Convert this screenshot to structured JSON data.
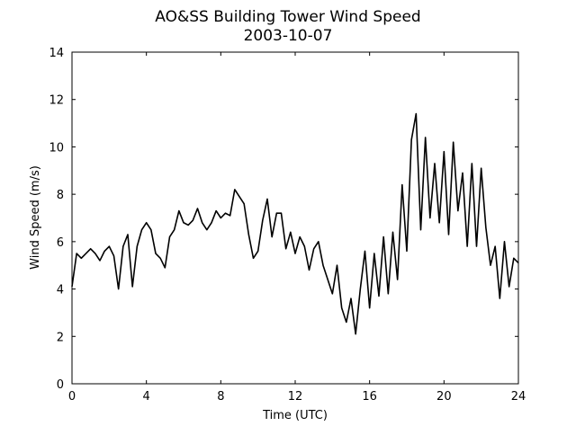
{
  "chart_data": {
    "type": "line",
    "title": "AO&SS Building Tower Wind Speed",
    "subtitle": "2003-10-07",
    "xlabel": "Time (UTC)",
    "ylabel": "Wind Speed (m/s)",
    "x": [
      0,
      0.25,
      0.5,
      0.75,
      1,
      1.25,
      1.5,
      1.75,
      2,
      2.25,
      2.5,
      2.75,
      3,
      3.25,
      3.5,
      3.75,
      4,
      4.25,
      4.5,
      4.75,
      5,
      5.25,
      5.5,
      5.75,
      6,
      6.25,
      6.5,
      6.75,
      7,
      7.25,
      7.5,
      7.75,
      8,
      8.25,
      8.5,
      8.75,
      9,
      9.25,
      9.5,
      9.75,
      10,
      10.25,
      10.5,
      10.75,
      11,
      11.25,
      11.5,
      11.75,
      12,
      12.25,
      12.5,
      12.75,
      13,
      13.25,
      13.5,
      13.75,
      14,
      14.25,
      14.5,
      14.75,
      15,
      15.25,
      15.5,
      15.75,
      16,
      16.25,
      16.5,
      16.75,
      17,
      17.25,
      17.5,
      17.75,
      18,
      18.25,
      18.5,
      18.75,
      19,
      19.25,
      19.5,
      19.75,
      20,
      20.25,
      20.5,
      20.75,
      21,
      21.25,
      21.5,
      21.75,
      22,
      22.25,
      22.5,
      22.75,
      23,
      23.25,
      23.5,
      23.75,
      24
    ],
    "series": [
      {
        "name": "Wind Speed",
        "color": "#000000",
        "values": [
          4.1,
          5.5,
          5.3,
          5.5,
          5.7,
          5.5,
          5.2,
          5.6,
          5.8,
          5.4,
          4.0,
          5.8,
          6.3,
          4.1,
          5.8,
          6.5,
          6.8,
          6.5,
          5.5,
          5.3,
          4.9,
          6.2,
          6.5,
          7.3,
          6.8,
          6.7,
          6.9,
          7.4,
          6.8,
          6.5,
          6.8,
          7.3,
          7.0,
          7.2,
          7.1,
          8.2,
          7.9,
          7.6,
          6.3,
          5.3,
          5.6,
          6.9,
          7.8,
          6.2,
          7.2,
          7.2,
          5.7,
          6.4,
          5.5,
          6.2,
          5.8,
          4.8,
          5.7,
          6.0,
          5.0,
          4.4,
          3.8,
          5.0,
          3.2,
          2.6,
          3.6,
          2.1,
          4.0,
          5.6,
          3.2,
          5.5,
          3.7,
          6.2,
          3.8,
          6.4,
          4.4,
          8.4,
          5.6,
          10.3,
          11.4,
          6.5,
          10.4,
          7.0,
          9.3,
          6.8,
          9.8,
          6.3,
          10.2,
          7.3,
          8.9,
          5.8,
          9.3,
          5.8,
          9.1,
          6.6,
          5.0,
          5.8,
          3.6,
          6.0,
          4.1,
          5.3,
          5.1
        ]
      }
    ],
    "xlim": [
      0,
      24
    ],
    "xticks": [
      0,
      4,
      8,
      12,
      16,
      20,
      24
    ],
    "ylim": [
      0,
      14
    ],
    "yticks": [
      0,
      2,
      4,
      6,
      8,
      10,
      12,
      14
    ],
    "grid": false
  }
}
